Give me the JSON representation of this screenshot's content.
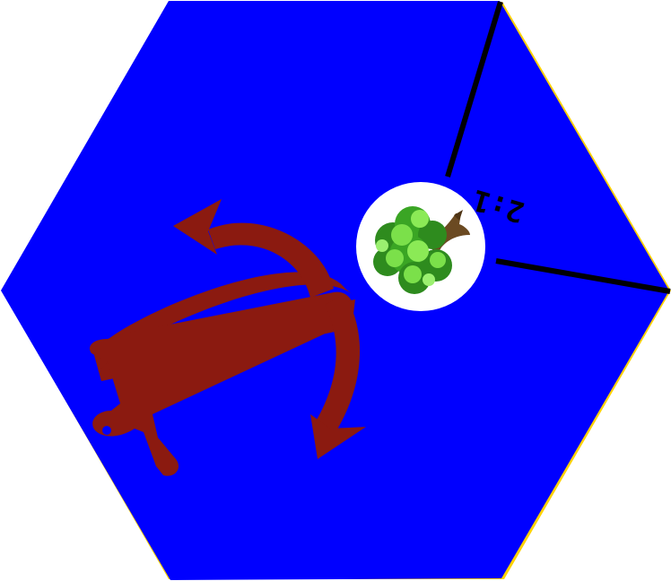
{
  "tile": {
    "terrain": "sea",
    "fill_color": "#0000FF",
    "edge_color": "#FFD200",
    "divider_color": "#000000"
  },
  "harbor": {
    "icon": "anchor-icon",
    "color": "#8B1A10"
  },
  "port": {
    "ratio": "2:1",
    "resource": "lumber",
    "resource_icon": "tree-icon",
    "badge_color": "#FFFFFF"
  }
}
